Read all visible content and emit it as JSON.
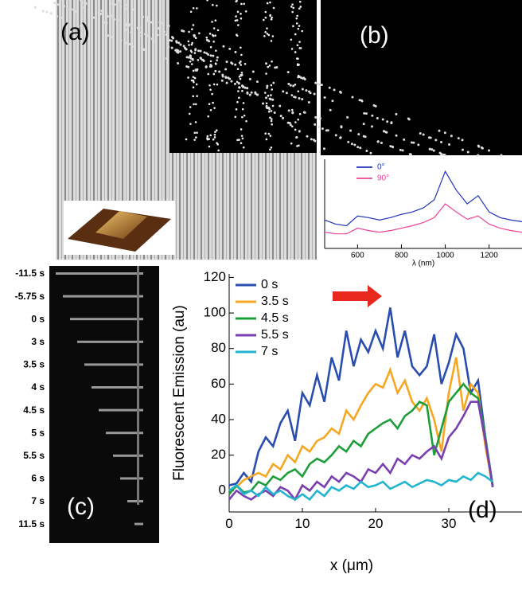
{
  "figure": {
    "panel_labels": [
      "(a)",
      "(b)",
      "(c)",
      "(d)"
    ],
    "times": [
      "-11.5 s",
      "-5.75 s",
      "0 s",
      "3 s",
      "3.5 s",
      "4 s",
      "4.5 s",
      "5 s",
      "5.5 s",
      "6 s",
      "7 s",
      "11.5 s"
    ]
  },
  "chart_data": [
    {
      "type": "line",
      "x_label": "λ (nm)",
      "x": [
        450,
        500,
        550,
        600,
        650,
        700,
        750,
        800,
        850,
        900,
        950,
        1000,
        1050,
        1100,
        1150,
        1200,
        1250,
        1300,
        1350
      ],
      "series": [
        {
          "name": "0°",
          "color": "#2233bb",
          "values": [
            0.35,
            0.3,
            0.28,
            0.4,
            0.38,
            0.35,
            0.38,
            0.42,
            0.45,
            0.5,
            0.6,
            0.95,
            0.72,
            0.55,
            0.65,
            0.45,
            0.38,
            0.35,
            0.33
          ]
        },
        {
          "name": "90°",
          "color": "#ee4499",
          "values": [
            0.2,
            0.18,
            0.18,
            0.25,
            0.22,
            0.2,
            0.22,
            0.25,
            0.28,
            0.32,
            0.38,
            0.55,
            0.45,
            0.36,
            0.4,
            0.3,
            0.25,
            0.22,
            0.2
          ]
        }
      ],
      "xlim": [
        450,
        1350
      ],
      "ylim": [
        0,
        1.1
      ],
      "xticks": [
        600,
        800,
        1000,
        1200
      ],
      "legend": "upper-left"
    },
    {
      "type": "line",
      "x_label": "x (μm)",
      "y_label": "Fluorescent Emission (au)",
      "x": [
        0,
        1,
        2,
        3,
        4,
        5,
        6,
        7,
        8,
        9,
        10,
        11,
        12,
        13,
        14,
        15,
        16,
        17,
        18,
        19,
        20,
        21,
        22,
        23,
        24,
        25,
        26,
        27,
        28,
        29,
        30,
        31,
        32,
        33,
        34,
        35,
        36
      ],
      "series": [
        {
          "name": "0 s",
          "color": "#2a4db0",
          "values": [
            3,
            4,
            10,
            5,
            22,
            30,
            25,
            38,
            45,
            28,
            55,
            48,
            65,
            50,
            75,
            62,
            90,
            70,
            85,
            78,
            90,
            80,
            103,
            75,
            90,
            70,
            65,
            70,
            88,
            60,
            72,
            88,
            80,
            55,
            62,
            30,
            3
          ]
        },
        {
          "name": "3.5 s",
          "color": "#f5a623",
          "values": [
            0,
            2,
            6,
            8,
            10,
            8,
            15,
            12,
            20,
            16,
            25,
            22,
            28,
            30,
            35,
            32,
            45,
            40,
            48,
            55,
            60,
            58,
            68,
            55,
            62,
            50,
            45,
            52,
            40,
            22,
            55,
            75,
            45,
            60,
            55,
            25,
            2
          ]
        },
        {
          "name": "4.5 s",
          "color": "#1e9e3a",
          "values": [
            -2,
            3,
            -1,
            0,
            5,
            3,
            8,
            6,
            10,
            12,
            8,
            15,
            18,
            16,
            20,
            25,
            22,
            28,
            25,
            32,
            35,
            38,
            40,
            35,
            42,
            45,
            50,
            48,
            20,
            35,
            50,
            55,
            60,
            55,
            52,
            30,
            2
          ]
        },
        {
          "name": "5.5 s",
          "color": "#7a3fb0",
          "values": [
            -5,
            0,
            -3,
            -5,
            -2,
            0,
            -3,
            2,
            0,
            -5,
            3,
            0,
            5,
            2,
            8,
            5,
            10,
            8,
            5,
            12,
            10,
            15,
            10,
            18,
            15,
            20,
            18,
            22,
            25,
            18,
            30,
            35,
            42,
            50,
            50,
            28,
            2
          ]
        },
        {
          "name": "7 s",
          "color": "#22b5d0",
          "values": [
            0,
            3,
            -2,
            0,
            -3,
            2,
            -2,
            0,
            -3,
            -5,
            -2,
            -5,
            0,
            -3,
            2,
            0,
            3,
            1,
            5,
            2,
            3,
            5,
            1,
            3,
            5,
            2,
            4,
            6,
            5,
            3,
            6,
            5,
            8,
            6,
            10,
            8,
            5
          ]
        }
      ],
      "xlim": [
        0,
        40
      ],
      "ylim": [
        -12,
        122
      ],
      "xticks": [
        0,
        10,
        20,
        30
      ],
      "yticks": [
        0,
        20,
        40,
        60,
        80,
        100,
        120
      ],
      "legend": "upper-left"
    }
  ]
}
